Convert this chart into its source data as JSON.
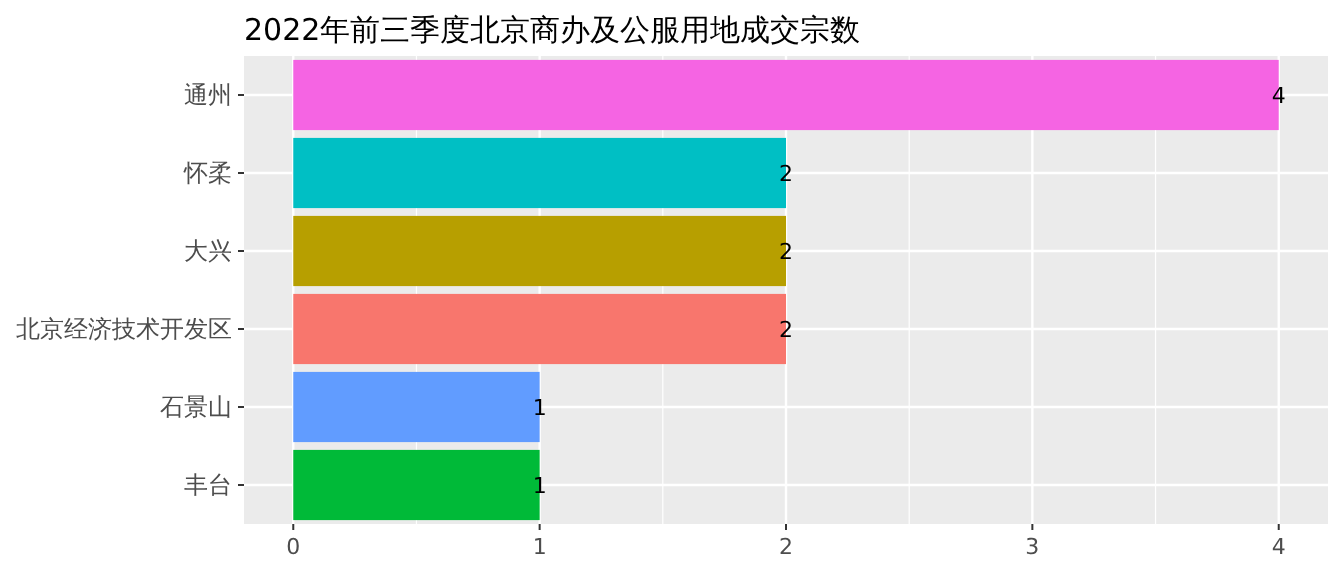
{
  "chart_data": {
    "type": "bar",
    "orientation": "horizontal",
    "title": "2022年前三季度北京商办及公服用地成交宗数",
    "categories": [
      "通州",
      "怀柔",
      "大兴",
      "北京经济技术开发区",
      "石景山",
      "丰台"
    ],
    "values": [
      4,
      2,
      2,
      2,
      1,
      1
    ],
    "colors": [
      "#f564e3",
      "#00bfc4",
      "#b79f00",
      "#f8766d",
      "#619cff",
      "#00ba38"
    ],
    "xlim": [
      -0.2,
      4.2
    ],
    "xticks": [
      0,
      1,
      2,
      3,
      4
    ],
    "grid": true,
    "data_labels": true
  }
}
